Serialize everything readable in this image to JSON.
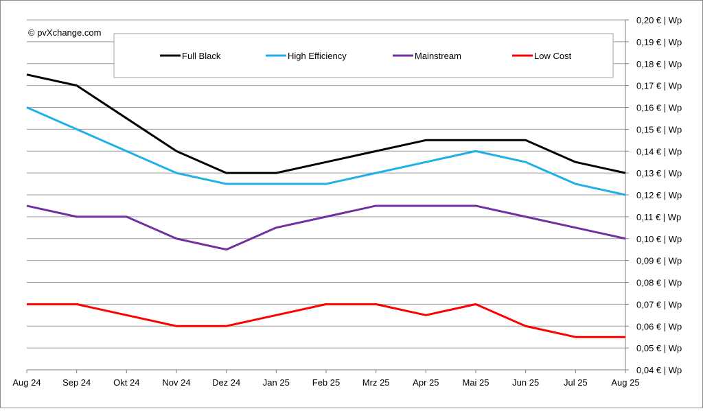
{
  "copyright": "© pvXchange.com",
  "chart_data": {
    "type": "line",
    "title": "",
    "xlabel": "",
    "ylabel": "",
    "ylim": [
      0.04,
      0.2
    ],
    "y_step": 0.01,
    "y_tick_labels": [
      "0,20 € | Wp",
      "0,19 € | Wp",
      "0,18 € | Wp",
      "0,17 € | Wp",
      "0,16 € | Wp",
      "0,15 € | Wp",
      "0,14 € | Wp",
      "0,13 € | Wp",
      "0,12 € | Wp",
      "0,11 € | Wp",
      "0,10 € | Wp",
      "0,09 € | Wp",
      "0,08 € | Wp",
      "0,07 € | Wp",
      "0,06 € | Wp",
      "0,05 € | Wp",
      "0,04 € | Wp"
    ],
    "y_axis_side": "right",
    "grid": true,
    "legend_position": "top",
    "categories": [
      "Aug 24",
      "Sep 24",
      "Okt 24",
      "Nov 24",
      "Dez 24",
      "Jan 25",
      "Feb 25",
      "Mrz 25",
      "Apr 25",
      "Mai 25",
      "Jun 25",
      "Jul 25",
      "Aug 25"
    ],
    "series": [
      {
        "name": "Full Black",
        "color": "#000000",
        "values": [
          0.175,
          0.17,
          0.155,
          0.14,
          0.13,
          0.13,
          0.135,
          0.14,
          0.145,
          0.145,
          0.145,
          0.135,
          0.13
        ]
      },
      {
        "name": "High Efficiency",
        "color": "#1fb0e8",
        "values": [
          0.16,
          0.15,
          0.14,
          0.13,
          0.125,
          0.125,
          0.125,
          0.13,
          0.135,
          0.14,
          0.135,
          0.125,
          0.12
        ]
      },
      {
        "name": "Mainstream",
        "color": "#7030a0",
        "values": [
          0.115,
          0.11,
          0.11,
          0.1,
          0.095,
          0.105,
          0.11,
          0.115,
          0.115,
          0.115,
          0.11,
          0.105,
          0.1
        ]
      },
      {
        "name": "Low Cost",
        "color": "#ff0000",
        "values": [
          0.07,
          0.07,
          0.065,
          0.06,
          0.06,
          0.065,
          0.07,
          0.07,
          0.065,
          0.07,
          0.06,
          0.055,
          0.055
        ]
      }
    ]
  }
}
